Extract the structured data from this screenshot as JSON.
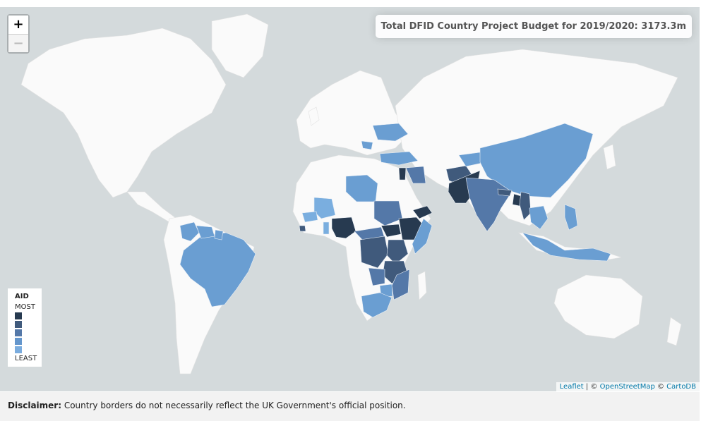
{
  "zoom": {
    "in_label": "+",
    "out_label": "−"
  },
  "budget": {
    "text": "Total DFID Country Project Budget for 2019/2020: 3173.3m"
  },
  "legend": {
    "title": "AID",
    "most": "MOST",
    "least": "LEAST",
    "colors": [
      "#273a50",
      "#405a7c",
      "#5478a8",
      "#6496cc",
      "#7aacde"
    ]
  },
  "attribution": {
    "leaflet": "Leaflet",
    "sep1": " | © ",
    "osm": "OpenStreetMap",
    "sep2": " © ",
    "carto": "CartoDB"
  },
  "disclaimer": {
    "label": "Disclaimer:",
    "text": " Country borders do not necessarily reflect the UK Government's official position."
  },
  "colors": {
    "water": "#d4dadc",
    "land": "#fafafa"
  }
}
